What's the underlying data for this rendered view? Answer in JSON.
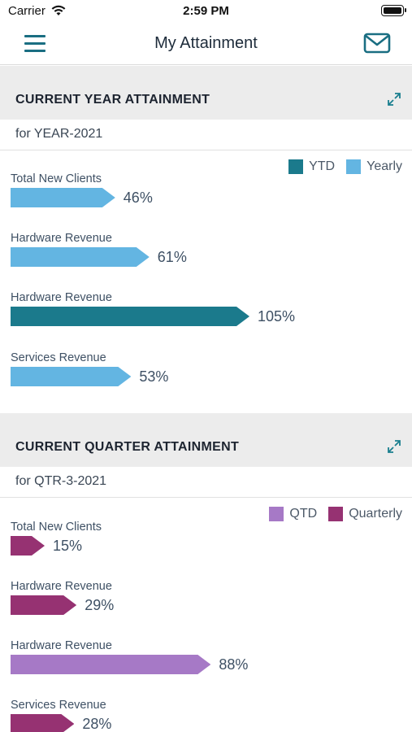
{
  "status": {
    "carrier": "Carrier",
    "time": "2:59 PM"
  },
  "header": {
    "title": "My Attainment",
    "menu_icon": "menu-icon",
    "mail_icon": "mail-icon"
  },
  "colors": {
    "accent": "#1a6e82",
    "ytd": "#1b7a8c",
    "yearly": "#63b5e2",
    "qtd": "#a679c6",
    "quarterly": "#963272"
  },
  "year_section": {
    "title": "CURRENT YEAR ATTAINMENT",
    "subtitle": "for YEAR-2021",
    "expand_icon": "expand-icon",
    "legend": [
      {
        "label": "YTD",
        "color": "#1b7a8c"
      },
      {
        "label": "Yearly",
        "color": "#63b5e2"
      }
    ]
  },
  "quarter_section": {
    "title": "CURRENT QUARTER ATTAINMENT",
    "subtitle": "for QTR-3-2021",
    "expand_icon": "expand-icon",
    "legend": [
      {
        "label": "QTD",
        "color": "#a679c6"
      },
      {
        "label": "Quarterly",
        "color": "#963272"
      }
    ]
  },
  "chart_data": [
    {
      "type": "bar",
      "title": "CURRENT YEAR ATTAINMENT",
      "categories": [
        "Total New Clients",
        "Hardware Revenue",
        "Hardware Revenue",
        "Services Revenue"
      ],
      "values": [
        46,
        61,
        105,
        53
      ],
      "value_labels": [
        "46%",
        "61%",
        "105%",
        "53%"
      ],
      "bar_series": [
        "Yearly",
        "Yearly",
        "YTD",
        "Yearly"
      ],
      "bar_colors": [
        "#63b5e2",
        "#63b5e2",
        "#1b7a8c",
        "#63b5e2"
      ],
      "legend_position": "top-right"
    },
    {
      "type": "bar",
      "title": "CURRENT QUARTER ATTAINMENT",
      "categories": [
        "Total New Clients",
        "Hardware Revenue",
        "Hardware Revenue",
        "Services Revenue"
      ],
      "values": [
        15,
        29,
        88,
        28
      ],
      "value_labels": [
        "15%",
        "29%",
        "88%",
        "28%"
      ],
      "bar_series": [
        "Quarterly",
        "Quarterly",
        "QTD",
        "Quarterly"
      ],
      "bar_colors": [
        "#963272",
        "#963272",
        "#a679c6",
        "#963272"
      ],
      "legend_position": "top-right"
    }
  ]
}
